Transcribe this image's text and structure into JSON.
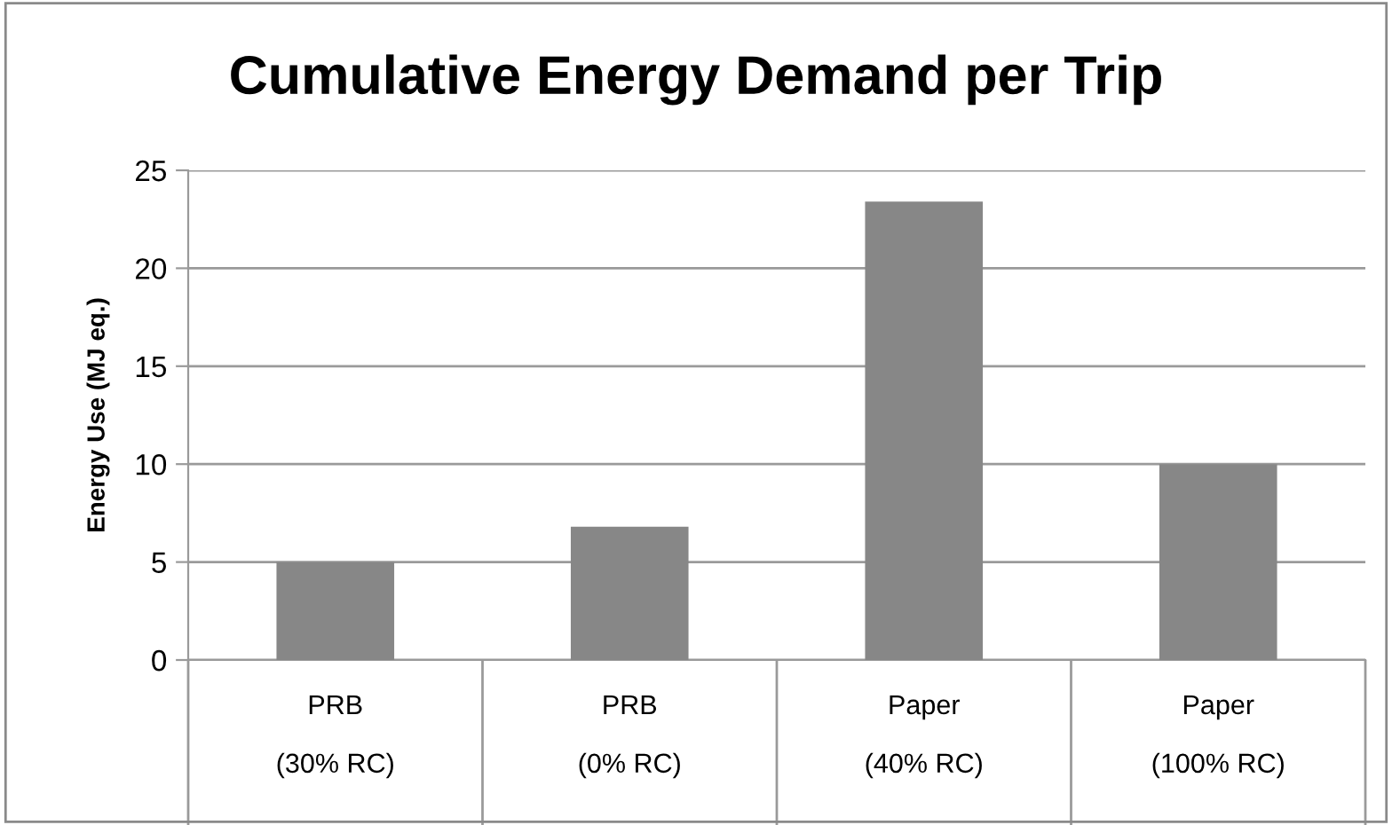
{
  "chart_data": {
    "type": "bar",
    "title": "Cumulative Energy Demand per Trip",
    "ylabel": "Energy Use (MJ eq.)",
    "categories": [
      "PRB\n\n(30% RC)",
      "PRB\n\n(0% RC)",
      "Paper\n\n(40% RC)",
      "Paper\n\n(100% RC)"
    ],
    "values": [
      5.0,
      6.8,
      23.4,
      10.0
    ],
    "color": "#878787",
    "ylim": [
      0,
      25
    ],
    "yticks": [
      0,
      5,
      10,
      15,
      20,
      25
    ],
    "grid": "y"
  }
}
